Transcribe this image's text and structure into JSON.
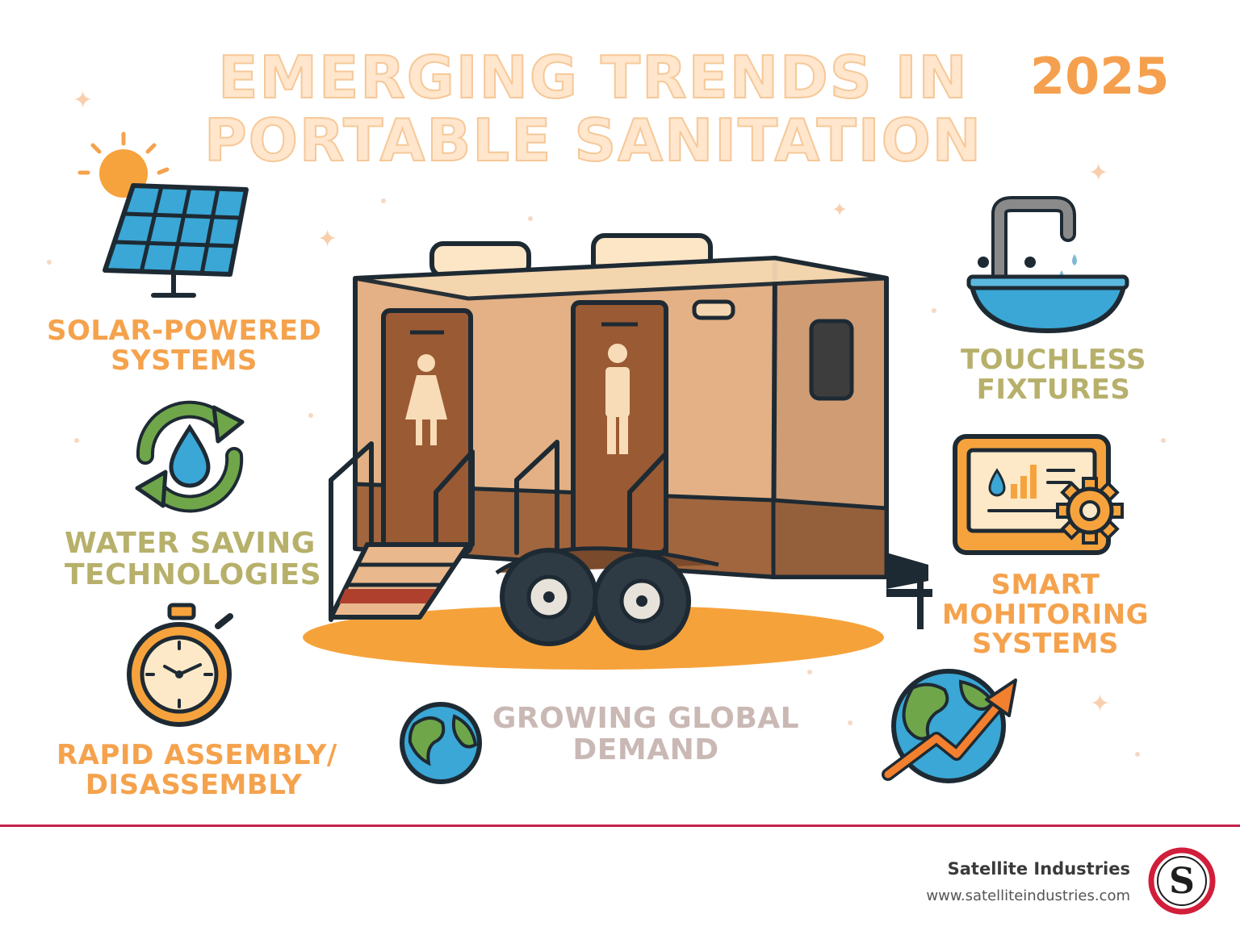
{
  "title": {
    "line1": "EMERGING TRENDS IN",
    "line2": "PORTABLE SANITATION",
    "year": "2025"
  },
  "trends": {
    "solar": {
      "line1": "SOLAR-POWERED",
      "line2": "SYSTEMS",
      "icon": "solar-panel-icon"
    },
    "water": {
      "line1": "WATER SAVING",
      "line2": "TECHNOLOGIES",
      "icon": "water-recycle-icon"
    },
    "rapid": {
      "line1": "RAPID ASSEMBLY/",
      "line2": "DISASSEMBLY",
      "icon": "stopwatch-icon"
    },
    "touchless": {
      "line1": "TOUCHLESS",
      "line2": "FIXTURES",
      "icon": "faucet-sink-icon"
    },
    "smart": {
      "line1": "SMART",
      "line2": "MOHITORING",
      "line3": "SYSTEMS",
      "icon": "monitor-gear-icon"
    },
    "global": {
      "line1": "GROWING GLOBAL",
      "line2": "DEMAND",
      "icon": "globe-icon"
    }
  },
  "illustration": {
    "icon": "restroom-trailer-icon"
  },
  "footer": {
    "brand": "Satellite Industries",
    "url": "www.satelliteindustries.com",
    "logo_letter": "S"
  },
  "colors": {
    "accent_orange": "#f5a24d",
    "olive": "#b7b06b",
    "title_fill": "#ffe6cc",
    "brand_red": "#c6204a"
  }
}
